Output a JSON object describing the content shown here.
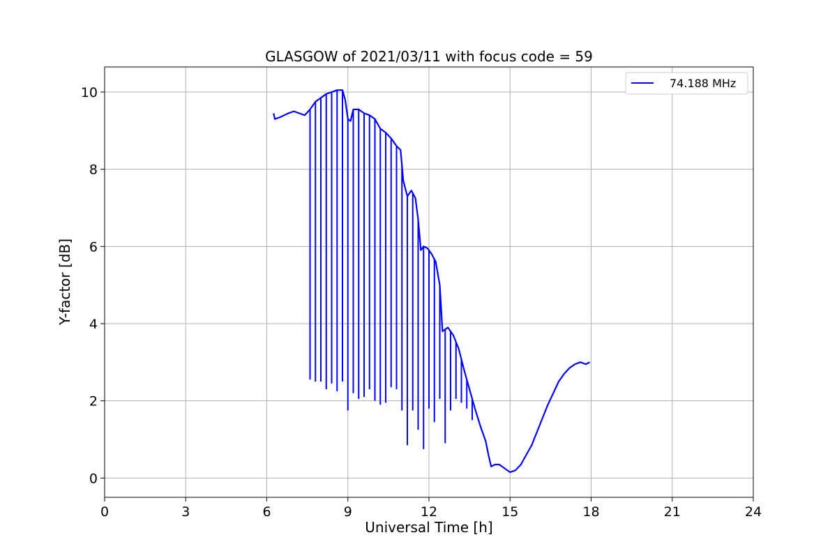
{
  "chart_data": {
    "type": "line",
    "title": "GLASGOW of 2021/03/11 with focus code = 59",
    "xlabel": "Universal Time [h]",
    "ylabel": "Y-factor [dB]",
    "xlim": [
      0,
      24
    ],
    "ylim": [
      -0.5,
      10.65
    ],
    "xticks": [
      "0",
      "3",
      "6",
      "9",
      "12",
      "15",
      "18",
      "21",
      "24"
    ],
    "yticks": [
      "0",
      "2",
      "4",
      "6",
      "8",
      "10"
    ],
    "grid": true,
    "legend_position": "top-right",
    "series": [
      {
        "name": "74.188 MHz",
        "color": "#0000ff",
        "points": [
          [
            6.25,
            9.45
          ],
          [
            6.3,
            9.3
          ],
          [
            6.5,
            9.35
          ],
          [
            6.8,
            9.45
          ],
          [
            7.0,
            9.5
          ],
          [
            7.2,
            9.45
          ],
          [
            7.4,
            9.4
          ],
          [
            7.6,
            9.55
          ],
          [
            7.8,
            9.75
          ],
          [
            8.0,
            9.85
          ],
          [
            8.2,
            9.95
          ],
          [
            8.4,
            10.0
          ],
          [
            8.6,
            10.05
          ],
          [
            8.8,
            10.05
          ],
          [
            8.9,
            9.8
          ],
          [
            9.0,
            9.3
          ],
          [
            9.1,
            9.25
          ],
          [
            9.2,
            9.55
          ],
          [
            9.4,
            9.55
          ],
          [
            9.6,
            9.45
          ],
          [
            9.8,
            9.4
          ],
          [
            10.0,
            9.3
          ],
          [
            10.2,
            9.05
          ],
          [
            10.4,
            8.95
          ],
          [
            10.6,
            8.8
          ],
          [
            10.8,
            8.6
          ],
          [
            10.95,
            8.5
          ],
          [
            11.05,
            7.7
          ],
          [
            11.2,
            7.3
          ],
          [
            11.35,
            7.45
          ],
          [
            11.5,
            7.25
          ],
          [
            11.6,
            6.7
          ],
          [
            11.7,
            5.9
          ],
          [
            11.8,
            6.0
          ],
          [
            11.95,
            5.95
          ],
          [
            12.1,
            5.8
          ],
          [
            12.25,
            5.6
          ],
          [
            12.4,
            5.0
          ],
          [
            12.5,
            3.8
          ],
          [
            12.7,
            3.9
          ],
          [
            12.9,
            3.7
          ],
          [
            13.1,
            3.35
          ],
          [
            13.3,
            2.8
          ],
          [
            13.5,
            2.3
          ],
          [
            13.7,
            1.8
          ],
          [
            13.9,
            1.35
          ],
          [
            14.1,
            0.95
          ],
          [
            14.2,
            0.6
          ],
          [
            14.3,
            0.3
          ],
          [
            14.45,
            0.35
          ],
          [
            14.6,
            0.35
          ],
          [
            14.8,
            0.25
          ],
          [
            15.0,
            0.15
          ],
          [
            15.2,
            0.2
          ],
          [
            15.4,
            0.35
          ],
          [
            15.6,
            0.6
          ],
          [
            15.8,
            0.85
          ],
          [
            16.0,
            1.2
          ],
          [
            16.2,
            1.55
          ],
          [
            16.4,
            1.9
          ],
          [
            16.6,
            2.2
          ],
          [
            16.8,
            2.5
          ],
          [
            17.0,
            2.7
          ],
          [
            17.2,
            2.85
          ],
          [
            17.4,
            2.95
          ],
          [
            17.6,
            3.0
          ],
          [
            17.8,
            2.95
          ],
          [
            17.95,
            3.0
          ]
        ],
        "dips": [
          [
            7.6,
            2.55
          ],
          [
            7.8,
            2.5
          ],
          [
            8.0,
            2.5
          ],
          [
            8.2,
            2.3
          ],
          [
            8.4,
            2.45
          ],
          [
            8.6,
            2.25
          ],
          [
            8.8,
            2.5
          ],
          [
            9.0,
            1.75
          ],
          [
            9.2,
            2.2
          ],
          [
            9.4,
            2.05
          ],
          [
            9.6,
            2.1
          ],
          [
            9.8,
            2.3
          ],
          [
            10.0,
            2.0
          ],
          [
            10.2,
            1.9
          ],
          [
            10.4,
            1.95
          ],
          [
            10.6,
            2.35
          ],
          [
            10.8,
            2.3
          ],
          [
            11.0,
            1.75
          ],
          [
            11.2,
            0.85
          ],
          [
            11.4,
            1.75
          ],
          [
            11.6,
            1.25
          ],
          [
            11.8,
            0.75
          ],
          [
            12.0,
            1.8
          ],
          [
            12.2,
            1.45
          ],
          [
            12.4,
            2.05
          ],
          [
            12.6,
            0.9
          ],
          [
            12.8,
            1.75
          ],
          [
            13.0,
            2.05
          ],
          [
            13.2,
            1.95
          ],
          [
            13.4,
            1.8
          ],
          [
            13.6,
            1.5
          ]
        ]
      }
    ]
  }
}
